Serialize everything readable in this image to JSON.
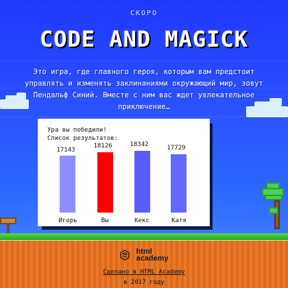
{
  "header": {
    "soon": "СКОРО",
    "title": "CODE AND MAGICK",
    "intro": "Это игра, где главного героя, которым вам предстоит управлять и изменять заклинаниями окружающий мир, зовут Пендальф Синий. Вместе с ним вас ждет увлекательное приключение…"
  },
  "stats": {
    "title": "Ура вы победили!",
    "list_label": "Список результатов:",
    "players": [
      {
        "name": "Игорь",
        "score": "17143",
        "color": "#8f8dff"
      },
      {
        "name": "Вы",
        "score": "18126",
        "color": "#ff0000"
      },
      {
        "name": "Кекс",
        "score": "18342",
        "color": "#5b5cff"
      },
      {
        "name": "Катя",
        "score": "17729",
        "color": "#6468ff"
      }
    ]
  },
  "footer": {
    "brand_line_1": "html",
    "brand_line_2": "academy",
    "made_text": "Сделано в HTML Academy",
    "year_text": "в 2017 году"
  },
  "icons": {
    "brand": "academy-logo-icon"
  },
  "colors": {
    "sky": "#2a4bff",
    "dirt": "#e97320",
    "grass": "#2aa223"
  }
}
